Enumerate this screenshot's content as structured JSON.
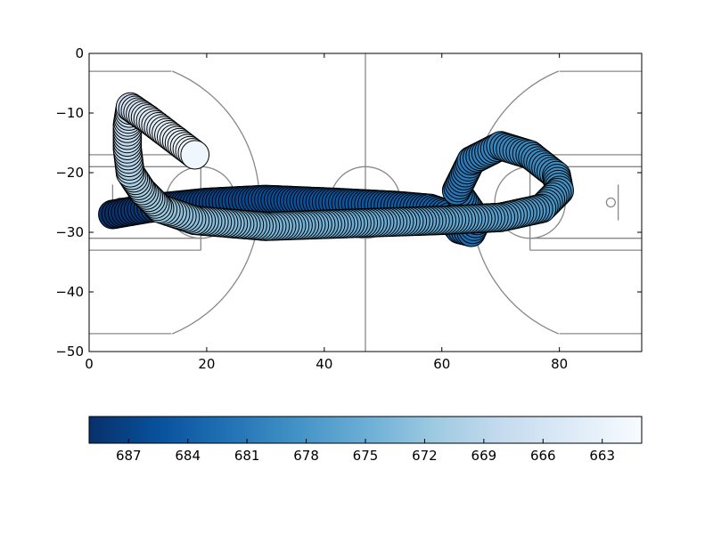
{
  "chart_data": {
    "type": "scatter",
    "title": "",
    "xlabel": "",
    "ylabel": "",
    "xlim": [
      0,
      94
    ],
    "ylim": [
      -50,
      0
    ],
    "x_ticks": [
      0,
      20,
      40,
      60,
      80
    ],
    "y_ticks": [
      0,
      -10,
      -20,
      -30,
      -40,
      -50
    ],
    "grid": false,
    "background_image": "basketball-half-court-lines",
    "marker_size_data_units": 2.4,
    "colormap": "Blues",
    "color_range": [
      661,
      689
    ],
    "colorbar": {
      "orientation": "horizontal",
      "placement": "bottom",
      "reversed": true,
      "ticks": [
        687,
        684,
        681,
        678,
        675,
        672,
        669,
        666,
        663
      ]
    },
    "series": [
      {
        "waypoints": [
          {
            "x": 4.0,
            "y": -27.0,
            "c": 689
          },
          {
            "x": 10.0,
            "y": -26.0,
            "c": 688
          },
          {
            "x": 20.0,
            "y": -25.0,
            "c": 687
          },
          {
            "x": 30.0,
            "y": -24.5,
            "c": 686
          },
          {
            "x": 42.0,
            "y": -25.0,
            "c": 685
          },
          {
            "x": 52.0,
            "y": -25.5,
            "c": 684.5
          },
          {
            "x": 58.0,
            "y": -26.0,
            "c": 684
          },
          {
            "x": 61.0,
            "y": -27.0,
            "c": 683.5
          },
          {
            "x": 63.0,
            "y": -29.5,
            "c": 683
          },
          {
            "x": 65.0,
            "y": -30.0,
            "c": 682.5
          },
          {
            "x": 66.0,
            "y": -28.0,
            "c": 682
          },
          {
            "x": 62.5,
            "y": -23.0,
            "c": 681.5
          },
          {
            "x": 65.0,
            "y": -18.0,
            "c": 681
          },
          {
            "x": 70.0,
            "y": -15.5,
            "c": 680
          },
          {
            "x": 75.0,
            "y": -17.0,
            "c": 679.5
          },
          {
            "x": 79.5,
            "y": -20.5,
            "c": 679
          },
          {
            "x": 80.0,
            "y": -23.0,
            "c": 678.5
          },
          {
            "x": 77.0,
            "y": -26.0,
            "c": 678
          },
          {
            "x": 70.0,
            "y": -27.5,
            "c": 677
          },
          {
            "x": 60.0,
            "y": -28.0,
            "c": 676
          },
          {
            "x": 45.0,
            "y": -28.5,
            "c": 675
          },
          {
            "x": 30.0,
            "y": -29.0,
            "c": 674
          },
          {
            "x": 18.0,
            "y": -28.0,
            "c": 673
          },
          {
            "x": 12.0,
            "y": -26.0,
            "c": 672
          },
          {
            "x": 9.0,
            "y": -23.0,
            "c": 671
          },
          {
            "x": 7.0,
            "y": -20.0,
            "c": 670
          },
          {
            "x": 6.5,
            "y": -16.0,
            "c": 669
          },
          {
            "x": 6.5,
            "y": -12.0,
            "c": 668
          },
          {
            "x": 7.0,
            "y": -9.0,
            "c": 667
          },
          {
            "x": 10.0,
            "y": -11.0,
            "c": 665
          },
          {
            "x": 14.0,
            "y": -14.0,
            "c": 663.5
          },
          {
            "x": 18.0,
            "y": -17.0,
            "c": 662
          }
        ]
      }
    ]
  }
}
